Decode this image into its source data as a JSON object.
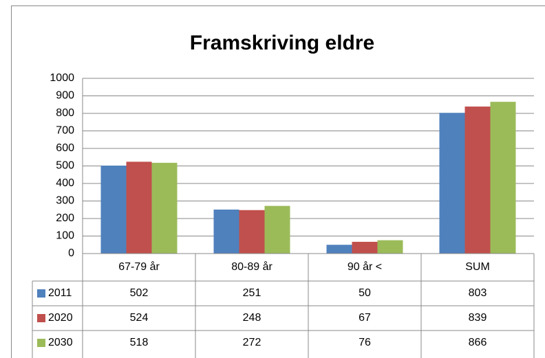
{
  "chart_data": {
    "type": "bar",
    "title": "Framskriving eldre",
    "categories": [
      "67-79 år",
      "80-89 år",
      "90 år <",
      "SUM"
    ],
    "series": [
      {
        "name": "2011",
        "color": "#4f81bd",
        "values": [
          502,
          251,
          50,
          803
        ]
      },
      {
        "name": "2020",
        "color": "#c0504d",
        "values": [
          524,
          248,
          67,
          839
        ]
      },
      {
        "name": "2030",
        "color": "#9bbb59",
        "values": [
          518,
          272,
          76,
          866
        ]
      }
    ],
    "ylim": [
      0,
      1000
    ],
    "yticks": [
      0,
      100,
      200,
      300,
      400,
      500,
      600,
      700,
      800,
      900,
      1000
    ],
    "grid": true,
    "data_table": true
  }
}
